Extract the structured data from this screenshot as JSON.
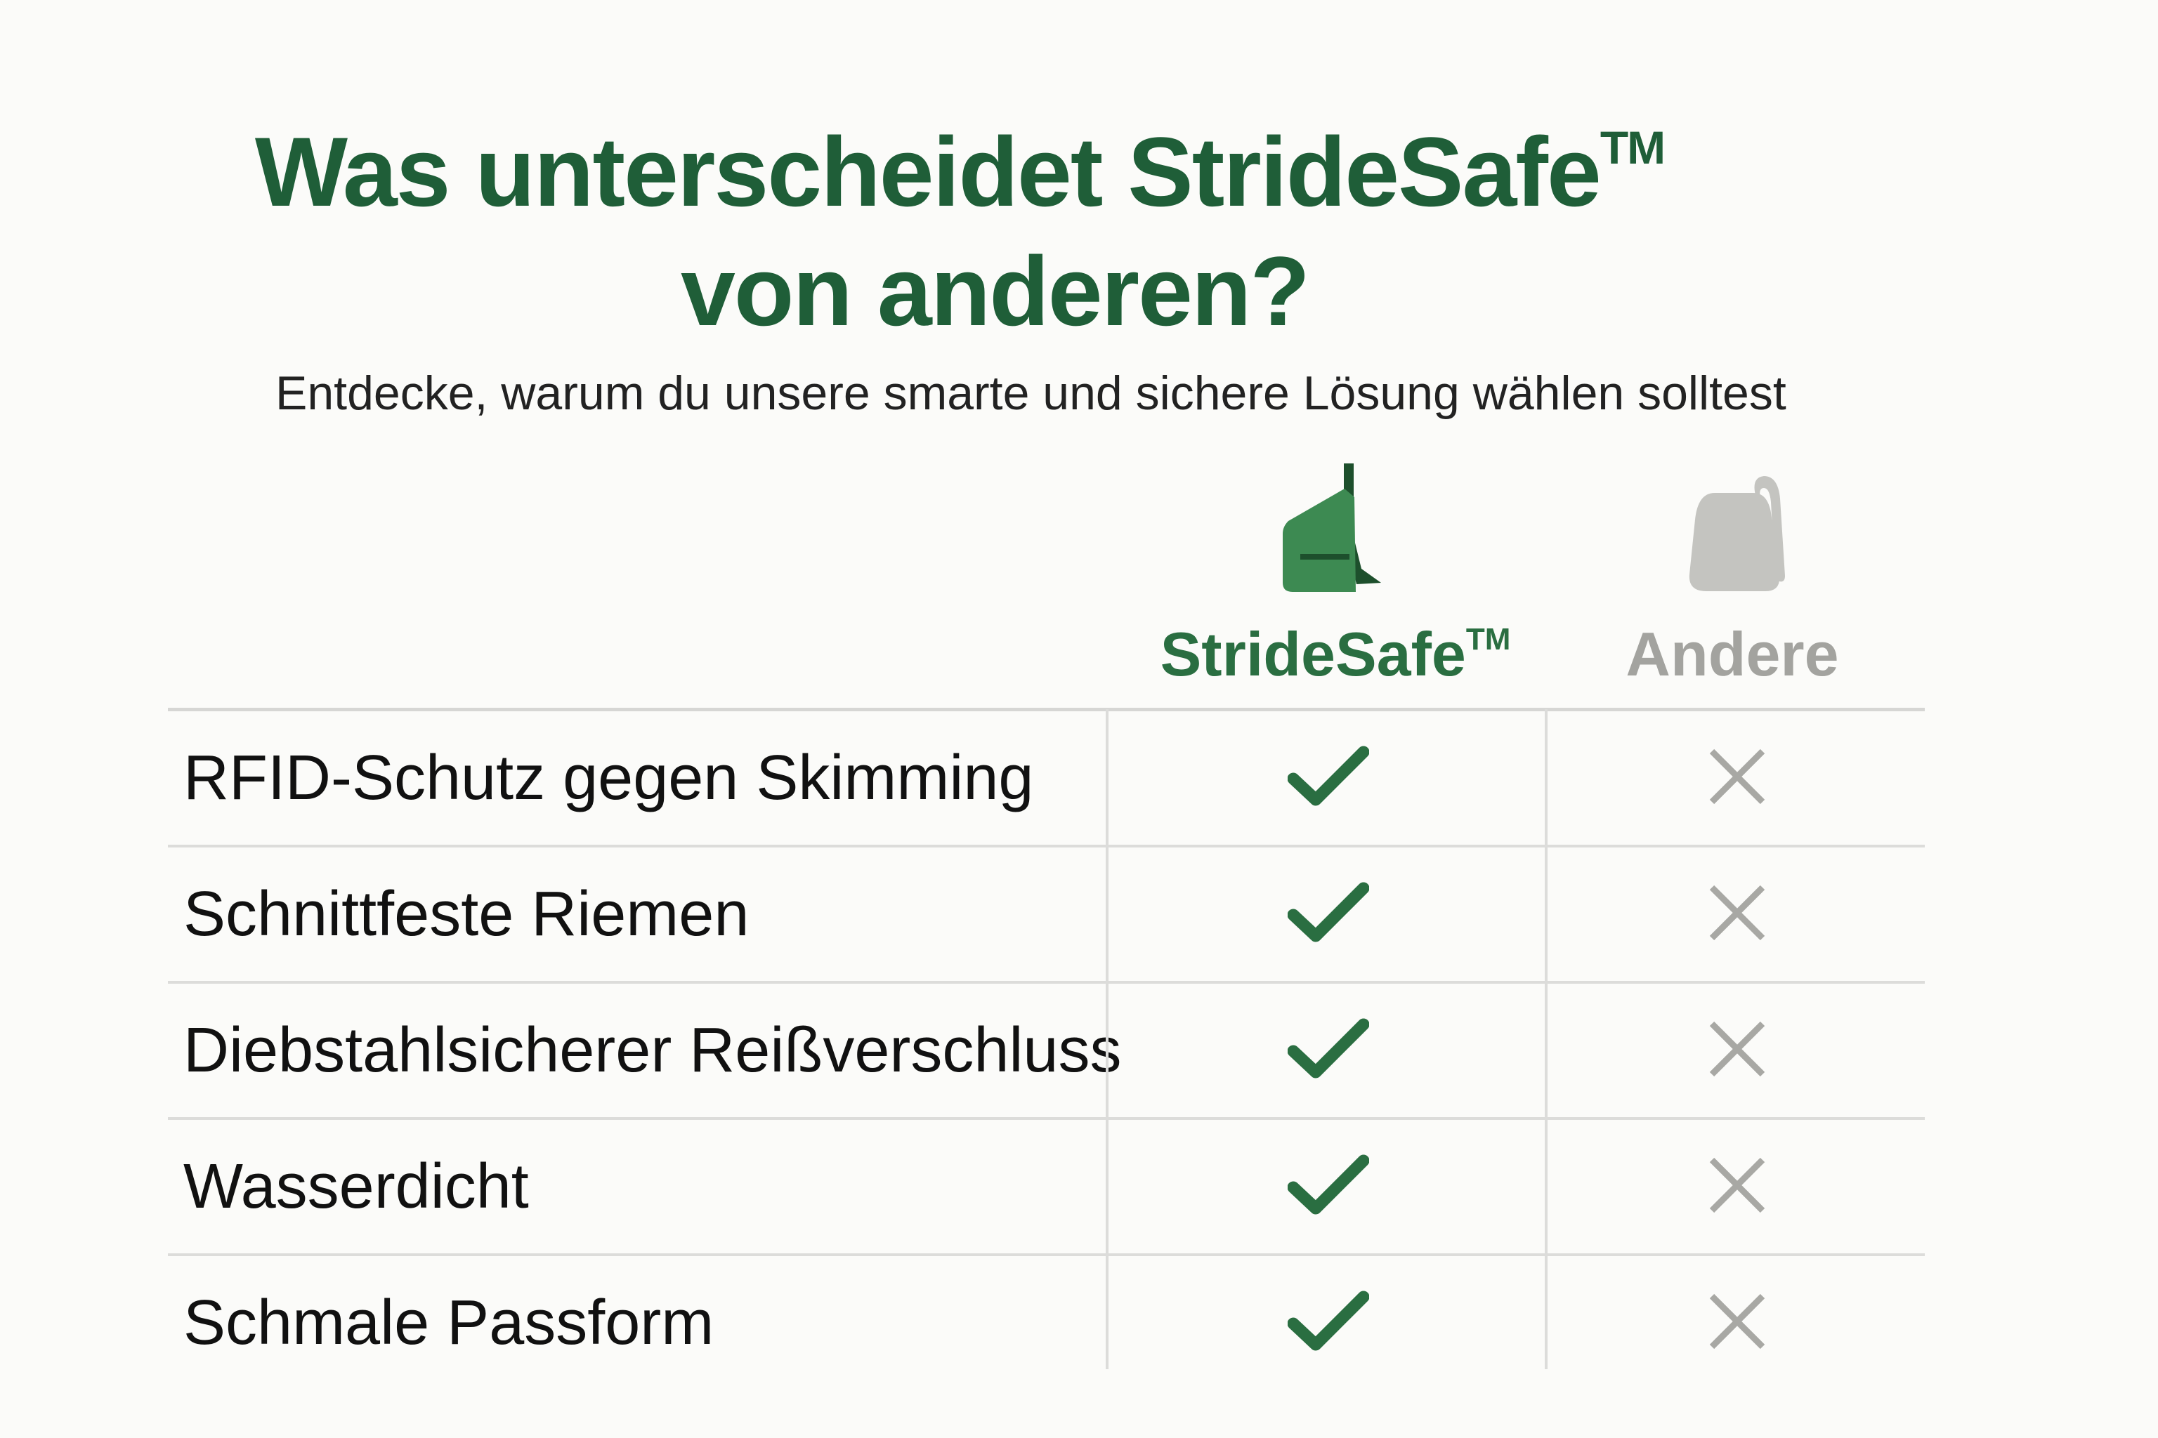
{
  "header": {
    "title_line1": "Was unterscheidet StrideSafe",
    "title_tm": "TM",
    "title_line2": "von anderen?",
    "subtitle": "Entdecke, warum du unsere smarte und sichere Lösung wählen solltest"
  },
  "columns": [
    {
      "label": "StrideSafe",
      "tm": "TM",
      "icon": "sling-bag-icon",
      "color": "#2a6e41"
    },
    {
      "label": "Andere",
      "icon": "generic-bag-icon",
      "color": "#a3a39f"
    }
  ],
  "rows": [
    {
      "feature": "RFID-Schutz gegen Skimming",
      "stridesafe": true,
      "andere": false
    },
    {
      "feature": "Schnittfeste Riemen",
      "stridesafe": true,
      "andere": false
    },
    {
      "feature": "Diebstahlsicherer Reißverschluss",
      "stridesafe": true,
      "andere": false
    },
    {
      "feature": "Wasserdicht",
      "stridesafe": true,
      "andere": false
    },
    {
      "feature": "Schmale Passform",
      "stridesafe": true,
      "andere": false
    }
  ],
  "colors": {
    "title": "#1f5e38",
    "check": "#2a6e41",
    "cross": "#a8a8a4",
    "background": "#fbfbf9"
  }
}
